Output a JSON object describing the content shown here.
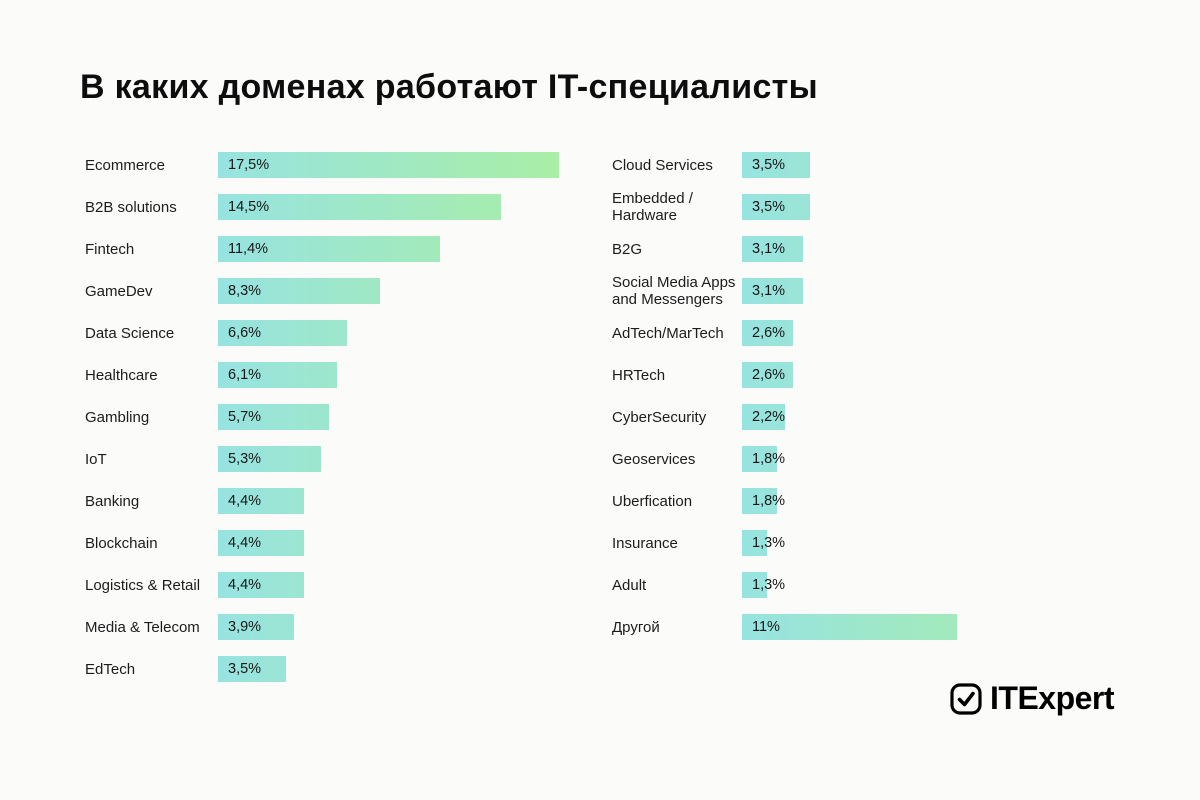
{
  "title": "В каких доменах работают IT-специалисты",
  "logo": {
    "brand": "ITExpert",
    "icon": "checkbox-check-icon"
  },
  "colors": {
    "background": "#fbfbfa",
    "bar_gradient_from": "#97e3e1",
    "bar_gradient_to": "#a9eea5",
    "text": "#0d0d0d"
  },
  "chart_data": {
    "type": "bar",
    "orientation": "horizontal",
    "value_unit": "%",
    "value_format": "comma-decimal",
    "title": "В каких доменах работают IT-специалисты",
    "legend": "none",
    "grid": false,
    "xlim": [
      0,
      17.5
    ],
    "bar_gradient": [
      "#97e3e1",
      "#a9eea5"
    ],
    "columns": [
      {
        "name": "left",
        "items": [
          {
            "label": "Ecommerce",
            "value": 17.5,
            "display": "17,5%"
          },
          {
            "label": "B2B solutions",
            "value": 14.5,
            "display": "14,5%"
          },
          {
            "label": "Fintech",
            "value": 11.4,
            "display": "11,4%"
          },
          {
            "label": "GameDev",
            "value": 8.3,
            "display": "8,3%"
          },
          {
            "label": "Data Science",
            "value": 6.6,
            "display": "6,6%"
          },
          {
            "label": "Healthcare",
            "value": 6.1,
            "display": "6,1%"
          },
          {
            "label": "Gambling",
            "value": 5.7,
            "display": "5,7%"
          },
          {
            "label": "IoT",
            "value": 5.3,
            "display": "5,3%"
          },
          {
            "label": "Banking",
            "value": 4.4,
            "display": "4,4%"
          },
          {
            "label": "Blockchain",
            "value": 4.4,
            "display": "4,4%"
          },
          {
            "label": "Logistics & Retail",
            "value": 4.4,
            "display": "4,4%"
          },
          {
            "label": "Media & Telecom",
            "value": 3.9,
            "display": "3,9%"
          },
          {
            "label": "EdTech",
            "value": 3.5,
            "display": "3,5%"
          }
        ]
      },
      {
        "name": "right",
        "items": [
          {
            "label": "Cloud Services",
            "value": 3.5,
            "display": "3,5%"
          },
          {
            "label": "Embedded / Hardware",
            "value": 3.5,
            "display": "3,5%"
          },
          {
            "label": "B2G",
            "value": 3.1,
            "display": "3,1%"
          },
          {
            "label": "Social Media Apps and Messengers",
            "value": 3.1,
            "display": "3,1%"
          },
          {
            "label": "AdTech/MarTech",
            "value": 2.6,
            "display": "2,6%"
          },
          {
            "label": "HRTech",
            "value": 2.6,
            "display": "2,6%"
          },
          {
            "label": "CyberSecurity",
            "value": 2.2,
            "display": "2,2%"
          },
          {
            "label": "Geoservices",
            "value": 1.8,
            "display": "1,8%"
          },
          {
            "label": "Uberfication",
            "value": 1.8,
            "display": "1,8%"
          },
          {
            "label": "Insurance",
            "value": 1.3,
            "display": "1,3%"
          },
          {
            "label": "Adult",
            "value": 1.3,
            "display": "1,3%"
          },
          {
            "label": "Другой",
            "value": 11,
            "display": "11%"
          }
        ]
      }
    ]
  }
}
